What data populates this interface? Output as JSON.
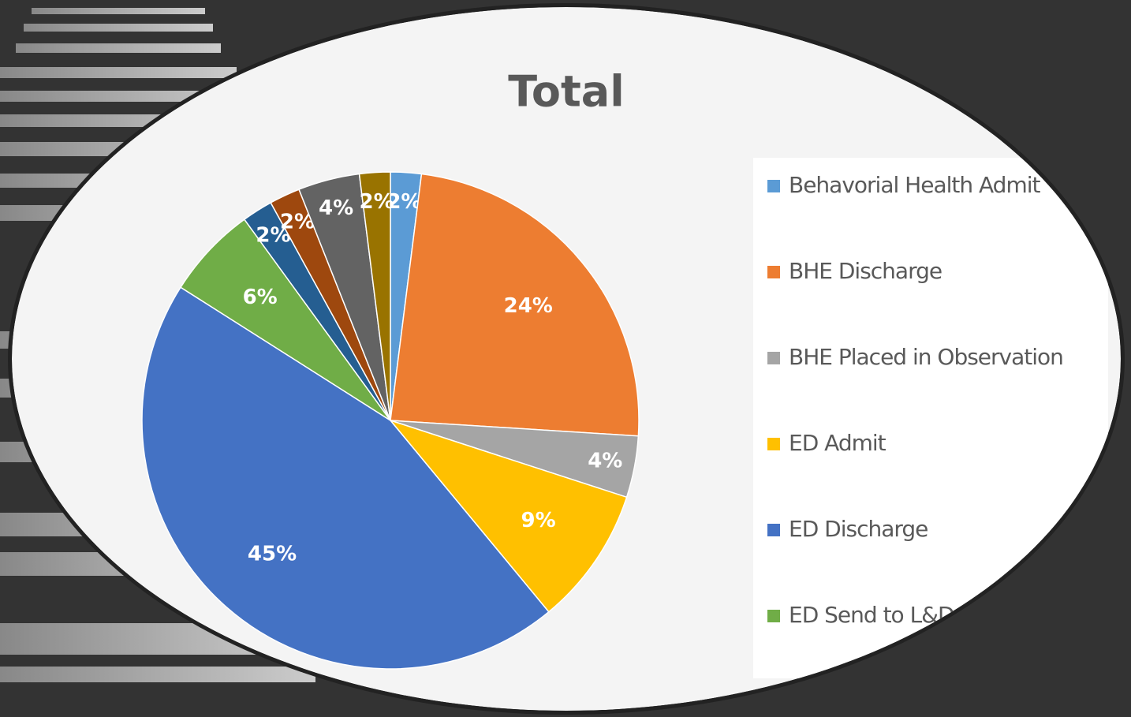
{
  "chart_data": {
    "type": "pie",
    "title": "Total",
    "categories": [
      "Behavorial Health Admit",
      "BHE Discharge",
      "BHE Placed in Observation",
      "ED Admit",
      "ED Discharge",
      "ED Send to L&D",
      null,
      null,
      null,
      null
    ],
    "values": [
      2,
      24,
      4,
      9,
      45,
      6,
      2,
      2,
      4,
      2
    ],
    "value_labels": [
      "2%",
      "24%",
      "4%",
      "9%",
      "45%",
      "6%",
      "2%",
      "2%",
      "4%",
      "2%"
    ],
    "colors": [
      "#5b9bd5",
      "#ed7d31",
      "#a5a5a5",
      "#ffc000",
      "#4472c4",
      "#70ad47",
      "#255e91",
      "#9e480e",
      "#636363",
      "#997300"
    ],
    "legend": "right"
  }
}
